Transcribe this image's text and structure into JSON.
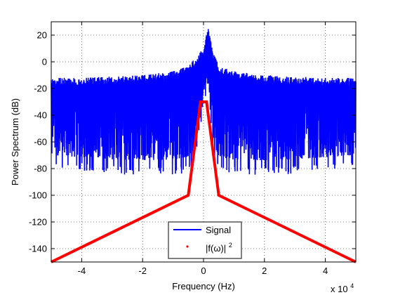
{
  "chart_data": {
    "type": "line",
    "xlabel": "Frequency (Hz)",
    "ylabel": "Power Spectrum (dB)",
    "x_exponent_label": "x 10",
    "x_exponent_power": "4",
    "xlim": [
      -50000,
      50000
    ],
    "ylim": [
      -150,
      30
    ],
    "x_tick_values": [
      -40000,
      -20000,
      0,
      20000,
      40000
    ],
    "x_tick_labels": [
      "-4",
      "-2",
      "0",
      "2",
      "4"
    ],
    "y_tick_values": [
      20,
      0,
      -20,
      -40,
      -60,
      -80,
      -100,
      -120,
      -140
    ],
    "y_tick_labels": [
      "20",
      "0",
      "-20",
      "-40",
      "-60",
      "-80",
      "-100",
      "-120",
      "-140"
    ],
    "grid": true,
    "legend_position": "bottom-center",
    "colors": {
      "signal": "#0000ff",
      "envelope": "#ff0000",
      "axes": "#000000",
      "grid": "#000000"
    },
    "series": [
      {
        "name": "Signal",
        "style": "line",
        "color": "#0000ff",
        "description_points": {
          "x": [
            -50000,
            -40000,
            -30000,
            -20000,
            -10000,
            -5000,
            -2000,
            0,
            1500,
            3000,
            5000,
            10000,
            20000,
            30000,
            40000,
            50000
          ],
          "upper_db": [
            -12,
            -12,
            -11,
            -10,
            -7,
            -3,
            5,
            10,
            27,
            8,
            -3,
            -7,
            -10,
            -11,
            -12,
            -12
          ],
          "lower_db": [
            -80,
            -82,
            -84,
            -85,
            -85,
            -83,
            -75,
            -30,
            -20,
            -75,
            -83,
            -85,
            -85,
            -84,
            -82,
            -80
          ]
        }
      },
      {
        "name": "|f(ω)|",
        "name_superscript": "2",
        "style": "line",
        "color": "#ff0000",
        "x": [
          -50000,
          -5000,
          -1000,
          1000,
          5000,
          50000
        ],
        "y": [
          -150,
          -100,
          -30,
          -30,
          -100,
          -150
        ]
      }
    ],
    "legend": [
      {
        "label": "Signal",
        "marker": "line"
      },
      {
        "label": "|f(ω)|",
        "superscript": "2",
        "marker": "dot"
      }
    ]
  }
}
